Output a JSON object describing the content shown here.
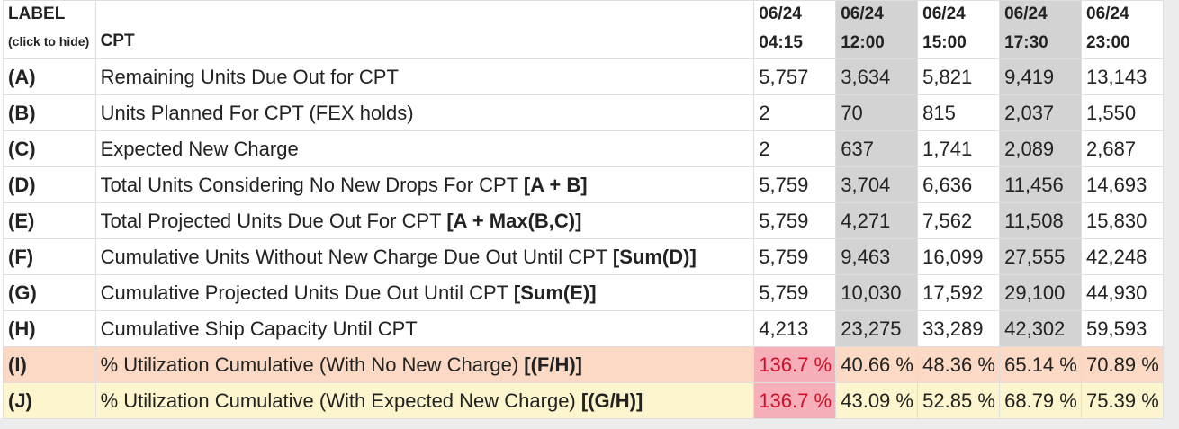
{
  "header": {
    "label_title": "LABEL",
    "label_hint": "(click to hide)",
    "cpt_title": "CPT",
    "columns": [
      {
        "date": "06/24",
        "time": "04:15"
      },
      {
        "date": "06/24",
        "time": "12:00"
      },
      {
        "date": "06/24",
        "time": "15:00"
      },
      {
        "date": "06/24",
        "time": "17:30"
      },
      {
        "date": "06/24",
        "time": "23:00"
      }
    ]
  },
  "rows": [
    {
      "letter": "(A)",
      "text": "Remaining Units Due Out for CPT",
      "formula": "",
      "values": [
        "5,757",
        "3,634",
        "5,821",
        "9,419",
        "13,143"
      ]
    },
    {
      "letter": "(B)",
      "text": "Units Planned For CPT (FEX holds)",
      "formula": "",
      "values": [
        "2",
        "70",
        "815",
        "2,037",
        "1,550"
      ]
    },
    {
      "letter": "(C)",
      "text": "Expected New Charge",
      "formula": "",
      "values": [
        "2",
        "637",
        "1,741",
        "2,089",
        "2,687"
      ]
    },
    {
      "letter": "(D)",
      "text": "Total Units Considering No New Drops For CPT ",
      "formula": "[A + B]",
      "values": [
        "5,759",
        "3,704",
        "6,636",
        "11,456",
        "14,693"
      ]
    },
    {
      "letter": "(E)",
      "text": "Total Projected Units Due Out For CPT ",
      "formula": "[A + Max(B,C)]",
      "values": [
        "5,759",
        "4,271",
        "7,562",
        "11,508",
        "15,830"
      ]
    },
    {
      "letter": "(F)",
      "text": "Cumulative Units Without New Charge Due Out Until CPT ",
      "formula": "[Sum(D)]",
      "values": [
        "5,759",
        "9,463",
        "16,099",
        "27,555",
        "42,248"
      ]
    },
    {
      "letter": "(G)",
      "text": "Cumulative Projected Units Due Out Until CPT ",
      "formula": "[Sum(E)]",
      "values": [
        "5,759",
        "10,030",
        "17,592",
        "29,100",
        "44,930"
      ]
    },
    {
      "letter": "(H)",
      "text": "Cumulative Ship Capacity Until CPT",
      "formula": "",
      "values": [
        "4,213",
        "23,275",
        "33,289",
        "42,302",
        "59,593"
      ]
    },
    {
      "letter": "(I)",
      "text": "% Utilization Cumulative (With No New Charge) ",
      "formula": "[(F/H)]",
      "values": [
        "136.7 %",
        "40.66 %",
        "48.36 %",
        "65.14 %",
        "70.89 %"
      ]
    },
    {
      "letter": "(J)",
      "text": "% Utilization Cumulative (With Expected New Charge) ",
      "formula": "[(G/H)]",
      "values": [
        "136.7 %",
        "43.09 %",
        "52.85 %",
        "68.79 %",
        "75.39 %"
      ]
    }
  ],
  "colors": {
    "shaded_column": "#d3d3d3",
    "utilization_no_charge_row": "#fbd9c4",
    "utilization_expected_charge_row": "#fdf5cd",
    "alert_background": "#f6aeb9",
    "alert_text": "#d0102a"
  }
}
